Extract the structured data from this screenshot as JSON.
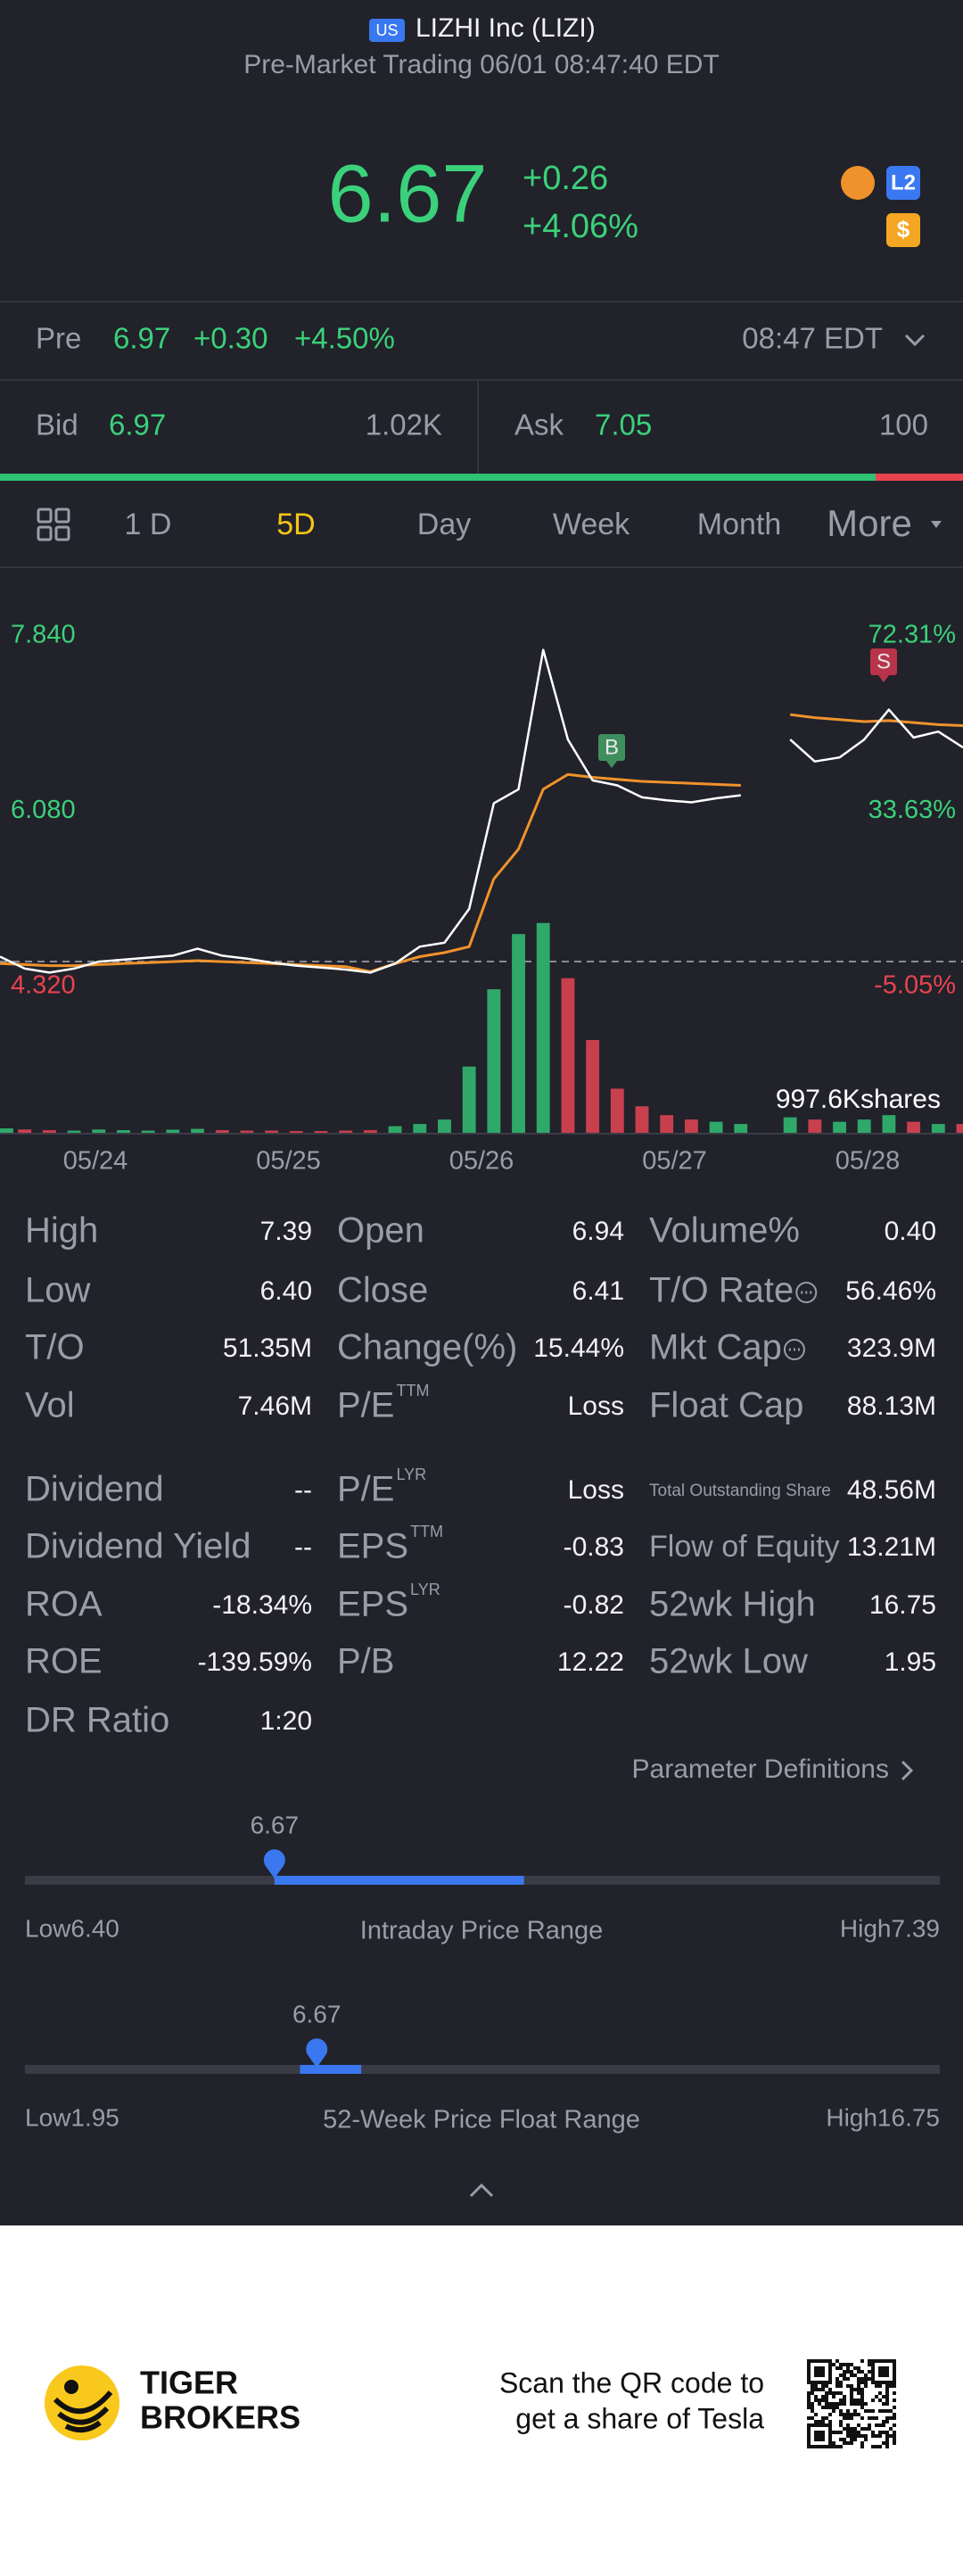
{
  "header": {
    "market": "US",
    "title": "LIZHI Inc (LIZI)",
    "subtitle": "Pre-Market Trading 06/01 08:47:40 EDT",
    "price": "6.67",
    "change": "+0.26",
    "change_pct": "+4.06%",
    "badges": [
      "L2",
      "$"
    ]
  },
  "pre": {
    "label": "Pre",
    "price": "6.97",
    "change": "+0.30",
    "change_pct": "+4.50%",
    "time": "08:47 EDT"
  },
  "bid": {
    "label": "Bid",
    "price": "6.97",
    "size": "1.02K"
  },
  "ask": {
    "label": "Ask",
    "price": "7.05",
    "size": "100"
  },
  "tabs": {
    "items": [
      "1 D",
      "5D",
      "Day",
      "Week",
      "Month",
      "More"
    ],
    "active": 1
  },
  "chart_data": {
    "type": "line",
    "yticks": [
      {
        "value": 7.84,
        "label": "7.840"
      },
      {
        "value": 6.08,
        "label": "6.080"
      },
      {
        "value": 4.32,
        "label": "4.320"
      }
    ],
    "y2ticks": [
      {
        "value": 72.31,
        "label": "72.31%"
      },
      {
        "value": 33.63,
        "label": "33.63%"
      },
      {
        "value": -5.05,
        "label": "-5.05%"
      }
    ],
    "x_labels": [
      "05/24",
      "05/25",
      "05/26",
      "05/27",
      "05/28"
    ],
    "price": {
      "color": "#ffffff",
      "values": [
        4.62,
        4.5,
        4.46,
        4.5,
        4.57,
        4.59,
        4.61,
        4.63,
        4.7,
        4.63,
        4.6,
        4.56,
        4.53,
        4.51,
        4.49,
        4.46,
        4.55,
        4.72,
        4.76,
        5.1,
        6.16,
        6.3,
        7.7,
        6.8,
        6.39,
        6.34,
        6.22,
        6.19,
        6.17,
        6.21,
        6.24,
        null,
        6.8,
        6.58,
        6.62,
        6.8,
        7.1,
        6.82,
        6.88,
        6.72
      ]
    },
    "average": {
      "color": "#f0922b",
      "values": [
        4.55,
        4.54,
        4.53,
        4.53,
        4.54,
        4.55,
        4.56,
        4.57,
        4.58,
        4.57,
        4.56,
        4.55,
        4.54,
        4.53,
        4.52,
        4.47,
        4.55,
        4.62,
        4.66,
        4.72,
        5.4,
        5.7,
        6.3,
        6.45,
        6.42,
        6.4,
        6.38,
        6.37,
        6.36,
        6.35,
        6.34,
        null,
        7.05,
        7.02,
        7.0,
        6.98,
        6.99,
        6.97,
        6.95,
        6.94
      ]
    },
    "volume": {
      "max": {
        "value": 997.6,
        "label": "997.6Kshares"
      },
      "values": [
        20,
        15,
        12,
        10,
        15,
        12,
        10,
        14,
        18,
        12,
        10,
        10,
        8,
        8,
        10,
        12,
        30,
        40,
        60,
        300,
        650,
        900,
        950,
        700,
        420,
        200,
        120,
        80,
        60,
        50,
        40,
        null,
        70,
        60,
        50,
        60,
        80,
        50,
        40,
        40
      ]
    },
    "signals": [
      {
        "label": "B",
        "color": "#3f8f5e"
      },
      {
        "label": "S",
        "color": "#b8344a"
      }
    ]
  },
  "stats": [
    [
      {
        "label": "High",
        "value": "7.39"
      },
      {
        "label": "Low",
        "value": "6.40"
      },
      {
        "label": "T/O",
        "value": "51.35M"
      },
      {
        "label": "Vol",
        "value": "7.46M"
      },
      {
        "label": "Dividend",
        "value": "--"
      },
      {
        "label": "Dividend Yield",
        "value": "--"
      },
      {
        "label": "ROA",
        "value": "-18.34%"
      },
      {
        "label": "ROE",
        "value": "-139.59%"
      },
      {
        "label": "DR Ratio",
        "value": "1:20"
      }
    ],
    [
      {
        "label": "Open",
        "value": "6.94"
      },
      {
        "label": "Close",
        "value": "6.41"
      },
      {
        "label": "Change(%)",
        "value": "15.44%"
      },
      {
        "label": "P/E",
        "sup": "TTM",
        "value": "Loss"
      },
      {
        "label": "P/E",
        "sup": "LYR",
        "value": "Loss"
      },
      {
        "label": "EPS",
        "sup": "TTM",
        "value": "-0.83"
      },
      {
        "label": "EPS",
        "sup": "LYR",
        "value": "-0.82"
      },
      {
        "label": "P/B",
        "value": "12.22"
      }
    ],
    [
      {
        "label": "Volume%",
        "value": "0.40"
      },
      {
        "label": "T/O Rate",
        "info": true,
        "value": "56.46%"
      },
      {
        "label": "Mkt Cap",
        "info": true,
        "value": "323.9M"
      },
      {
        "label": "Float Cap",
        "value": "88.13M"
      },
      {
        "label": "Total Outstanding Share",
        "value": "48.56M"
      },
      {
        "label": "Flow of Equity",
        "value": "13.21M"
      },
      {
        "label": "52wk High",
        "value": "16.75"
      },
      {
        "label": "52wk Low",
        "value": "1.95"
      }
    ]
  ],
  "param_link": "Parameter Definitions",
  "ranges": [
    {
      "price_label": "6.67",
      "price": 6.67,
      "low": 6.4,
      "high": 7.39,
      "fill_from": 6.67,
      "fill_to": 6.94,
      "low_label": "Low6.40",
      "title": "Intraday Price Range",
      "high_label": "High7.39"
    },
    {
      "price_label": "6.67",
      "price": 6.67,
      "low": 1.95,
      "high": 16.75,
      "fill_from": 6.4,
      "fill_to": 7.39,
      "low_label": "Low1.95",
      "title": "52-Week Price Float Range",
      "high_label": "High16.75"
    }
  ],
  "footer": {
    "brand": [
      "TIGER",
      "BROKERS"
    ],
    "promo": [
      "Scan the QR code to",
      "get a share of Tesla"
    ]
  }
}
